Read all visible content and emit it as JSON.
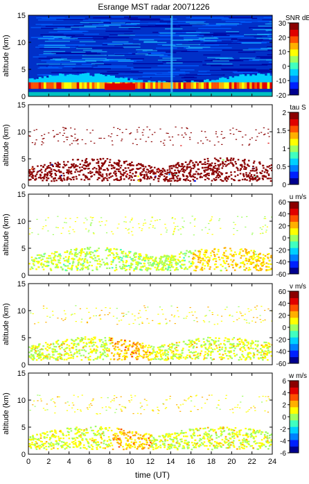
{
  "title": "Esrange MST radar 20071226",
  "xlabel": "time (UT)",
  "x_ticks": [
    "0",
    "2",
    "4",
    "6",
    "8",
    "10",
    "12",
    "14",
    "16",
    "18",
    "20",
    "22",
    "24"
  ],
  "colormap": [
    "#00008f",
    "#0020ff",
    "#0080ff",
    "#00d0ff",
    "#40ffc0",
    "#a0ff60",
    "#ffff00",
    "#ffb000",
    "#ff5000",
    "#e00000",
    "#8b0000"
  ],
  "chart_data": [
    {
      "type": "heatmap",
      "ylabel": "altitude (km)",
      "xlim": [
        0,
        24
      ],
      "ylim": [
        0,
        15
      ],
      "y_ticks": [
        "0",
        "5",
        "10",
        "15"
      ],
      "colorbar_label": "SNR dB",
      "colorbar_ticks": [
        "-20",
        "-10",
        "0",
        "10",
        "20",
        "30"
      ],
      "clim": [
        -20,
        30
      ]
    },
    {
      "type": "heatmap",
      "ylabel": "altitude (km)",
      "xlim": [
        0,
        24
      ],
      "ylim": [
        0,
        15
      ],
      "y_ticks": [
        "0",
        "5",
        "10",
        "15"
      ],
      "colorbar_label": "tau S",
      "colorbar_ticks": [
        "0",
        "0.5",
        "1",
        "1.5",
        "2"
      ],
      "clim": [
        0,
        2
      ]
    },
    {
      "type": "heatmap",
      "ylabel": "altitude (km)",
      "xlim": [
        0,
        24
      ],
      "ylim": [
        0,
        15
      ],
      "y_ticks": [
        "0",
        "5",
        "10",
        "15"
      ],
      "colorbar_label": "u m/s",
      "colorbar_ticks": [
        "-60",
        "-40",
        "-20",
        "0",
        "20",
        "40",
        "60"
      ],
      "clim": [
        -60,
        60
      ]
    },
    {
      "type": "heatmap",
      "ylabel": "altitude (km)",
      "xlim": [
        0,
        24
      ],
      "ylim": [
        0,
        15
      ],
      "y_ticks": [
        "0",
        "5",
        "10",
        "15"
      ],
      "colorbar_label": "v m/s",
      "colorbar_ticks": [
        "-60",
        "-40",
        "-20",
        "0",
        "20",
        "40",
        "60"
      ],
      "clim": [
        -60,
        60
      ]
    },
    {
      "type": "heatmap",
      "ylabel": "altitude (km)",
      "xlim": [
        0,
        24
      ],
      "ylim": [
        0,
        15
      ],
      "y_ticks": [
        "0",
        "5",
        "10",
        "15"
      ],
      "colorbar_label": "w m/s",
      "colorbar_ticks": [
        "-6",
        "-4",
        "-2",
        "0",
        "2",
        "4",
        "6"
      ],
      "clim": [
        -6,
        6
      ]
    }
  ]
}
